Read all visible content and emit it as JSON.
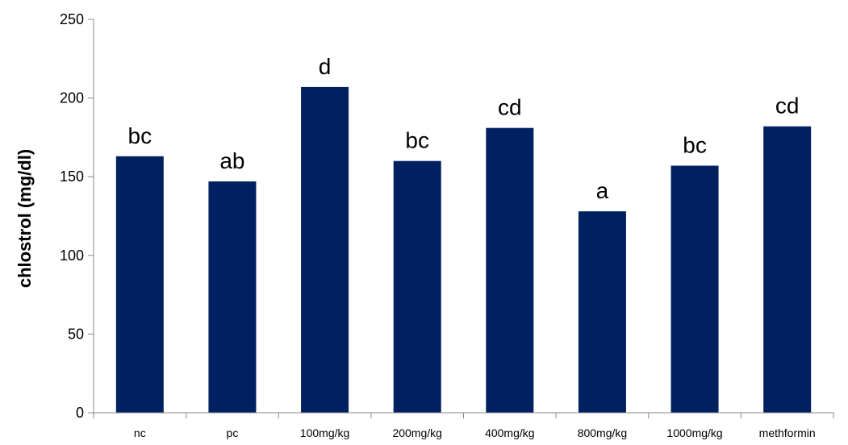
{
  "chart_data": {
    "type": "bar",
    "title": "",
    "xlabel": "",
    "ylabel": "chlostrol (mg/dl)",
    "ylim": [
      0,
      250
    ],
    "yticks": [
      0,
      50,
      100,
      150,
      200,
      250
    ],
    "grid": false,
    "legend": "none",
    "bar_color": "#002060",
    "categories": [
      "nc",
      "pc",
      "100mg/kg",
      "200mg/kg",
      "400mg/kg",
      "800mg/kg",
      "1000mg/kg",
      "methformin"
    ],
    "values": [
      163,
      147,
      207,
      160,
      181,
      128,
      157,
      182
    ],
    "bar_labels": [
      "bc",
      "ab",
      "d",
      "bc",
      "cd",
      "a",
      "bc",
      "cd"
    ]
  }
}
